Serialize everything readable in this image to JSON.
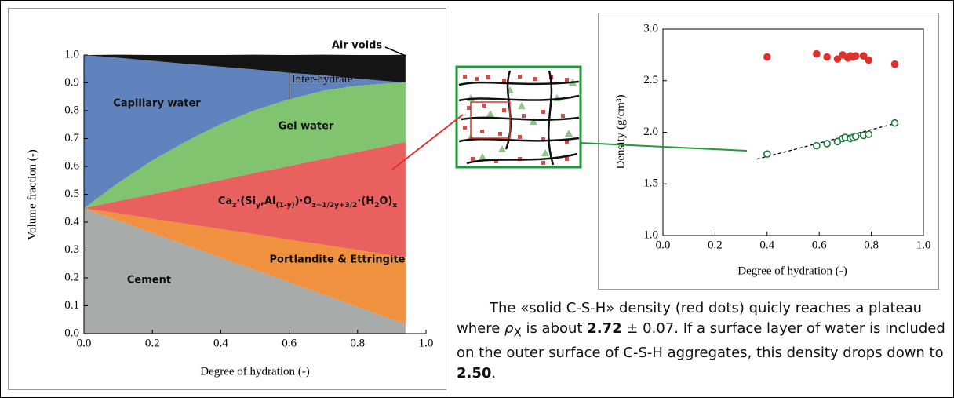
{
  "chart_data": [
    {
      "type": "area",
      "stacked": true,
      "xlabel": "Degree of hydration (-)",
      "ylabel": "Volume fraction (-)",
      "x": [
        0,
        0.1,
        0.2,
        0.3,
        0.4,
        0.5,
        0.6,
        0.7,
        0.8,
        0.9,
        0.94
      ],
      "series": [
        {
          "name": "Cement",
          "color": "#a7abaa",
          "values": [
            0.45,
            0.406,
            0.361,
            0.317,
            0.273,
            0.229,
            0.184,
            0.14,
            0.096,
            0.051,
            0.034
          ]
        },
        {
          "name": "Portlandite & Ettringite",
          "color": "#f0913f",
          "values": [
            0,
            0.026,
            0.051,
            0.077,
            0.102,
            0.128,
            0.153,
            0.179,
            0.204,
            0.23,
            0.24
          ]
        },
        {
          "name": [
            "Ca",
            "z",
            "·(Si",
            "y",
            ",Al",
            "(1-y)",
            ")·O",
            "z+1/2y+3/2",
            "·(H",
            "2",
            "O)",
            "x"
          ],
          "color": "#e8615f",
          "values": [
            0,
            0.044,
            0.088,
            0.132,
            0.176,
            0.22,
            0.264,
            0.308,
            0.352,
            0.396,
            0.414
          ]
        },
        {
          "name": "Gel water",
          "color": "#80c46f",
          "values": [
            0,
            0.065,
            0.122,
            0.165,
            0.201,
            0.225,
            0.24,
            0.245,
            0.238,
            0.222,
            0.213
          ]
        },
        {
          "name": "Capillary water",
          "color": "#6082bd",
          "values": [
            0.55,
            0.449,
            0.357,
            0.277,
            0.206,
            0.146,
            0.095,
            0.055,
            0.025,
            0.006,
            0
          ]
        },
        {
          "name": "Air voids",
          "color": "#151515",
          "values": [
            0,
            0.011,
            0.021,
            0.032,
            0.042,
            0.053,
            0.064,
            0.074,
            0.085,
            0.095,
            0.1
          ]
        }
      ],
      "annotations": [
        {
          "text": "Inter-hydrate",
          "x": 0.6,
          "y": [
            0.841,
            0.936
          ]
        }
      ],
      "xlim": [
        0,
        1
      ],
      "ylim": [
        0,
        1
      ],
      "xticks": [
        {
          "value": 0,
          "label": "0.0"
        },
        {
          "value": 0.2,
          "label": "0.2"
        },
        {
          "value": 0.4,
          "label": "0.4"
        },
        {
          "value": 0.6,
          "label": "0.6"
        },
        {
          "value": 0.8,
          "label": "0.8"
        },
        {
          "value": 1,
          "label": "1.0"
        }
      ],
      "yticks": [
        {
          "value": 0,
          "label": "0.0"
        },
        0.1,
        0.2,
        0.3,
        0.4,
        0.5,
        0.6,
        0.7,
        0.8,
        0.9,
        {
          "value": 1,
          "label": "1.0"
        }
      ]
    },
    {
      "type": "scatter",
      "xlabel": "Degree of hydration (-)",
      "ylabel": "Density (g/cm³)",
      "series": [
        {
          "color": "#e0302b",
          "filled": true,
          "x": [
            0.4,
            0.59,
            0.63,
            0.67,
            0.69,
            0.71,
            0.72,
            0.73,
            0.74,
            0.77,
            0.79,
            0.89
          ],
          "values": [
            2.73,
            2.76,
            2.73,
            2.71,
            2.75,
            2.72,
            2.74,
            2.73,
            2.74,
            2.74,
            2.7,
            2.66
          ]
        },
        {
          "color": "#1f7a3a",
          "filled": false,
          "x": [
            0.4,
            0.59,
            0.63,
            0.67,
            0.69,
            0.7,
            0.72,
            0.73,
            0.74,
            0.77,
            0.79,
            0.89
          ],
          "values": [
            1.79,
            1.87,
            1.89,
            1.91,
            1.94,
            1.95,
            1.94,
            1.95,
            1.96,
            1.97,
            1.98,
            2.09
          ]
        }
      ],
      "fit_line": {
        "x": [
          0.36,
          0.9
        ],
        "y": [
          1.74,
          2.09
        ]
      },
      "xlim": [
        0,
        1
      ],
      "ylim": [
        1,
        3
      ],
      "xticks": [
        {
          "value": 0,
          "label": "0.0"
        },
        {
          "value": 0.2,
          "label": "0.2"
        },
        {
          "value": 0.4,
          "label": "0.4"
        },
        {
          "value": 0.6,
          "label": "0.6"
        },
        {
          "value": 0.8,
          "label": "0.8"
        },
        {
          "value": 1,
          "label": "1.0"
        }
      ],
      "yticks": [
        {
          "value": 1,
          "label": "1.0"
        },
        1.5,
        {
          "value": 2,
          "label": "2.0"
        },
        2.5,
        {
          "value": 3,
          "label": "3.0"
        }
      ]
    }
  ],
  "caption": [
    "The «solid C-S-H» density (red dots) quicly reaches a plateau where ",
    "ρ",
    "X",
    " is about ",
    "2.72",
    " ± 0.07. If a surface layer of water is included on the outer surface of C-S-H aggregates, this density drops down to ",
    "2.50",
    "."
  ]
}
